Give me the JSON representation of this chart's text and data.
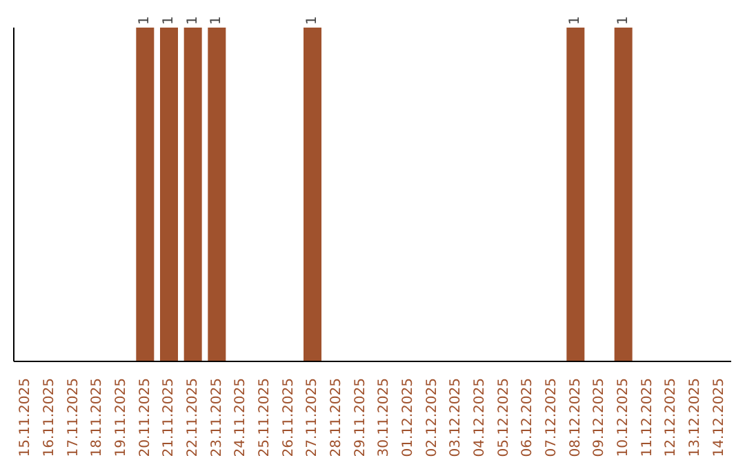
{
  "chart_data": {
    "type": "bar",
    "categories": [
      "15.11.2025",
      "16.11.2025",
      "17.11.2025",
      "18.11.2025",
      "19.11.2025",
      "20.11.2025",
      "21.11.2025",
      "22.11.2025",
      "23.11.2025",
      "24.11.2025",
      "25.11.2025",
      "26.11.2025",
      "27.11.2025",
      "28.11.2025",
      "29.11.2025",
      "30.11.2025",
      "01.12.2025",
      "02.12.2025",
      "03.12.2025",
      "04.12.2025",
      "05.12.2025",
      "06.12.2025",
      "07.12.2025",
      "08.12.2025",
      "09.12.2025",
      "10.12.2025",
      "11.12.2025",
      "12.12.2025",
      "13.12.2025",
      "14.12.2025"
    ],
    "values": [
      0,
      0,
      0,
      0,
      0,
      1,
      1,
      1,
      1,
      0,
      0,
      0,
      1,
      0,
      0,
      0,
      0,
      0,
      0,
      0,
      0,
      0,
      0,
      1,
      0,
      1,
      0,
      0,
      0,
      0
    ],
    "value_labels": [
      null,
      null,
      null,
      null,
      null,
      "1",
      "1",
      "1",
      "1",
      null,
      null,
      null,
      "1",
      null,
      null,
      null,
      null,
      null,
      null,
      null,
      null,
      null,
      null,
      "1",
      null,
      "1",
      null,
      null,
      null,
      null
    ],
    "color": "#a0522d",
    "tick_labels": "x"
  }
}
